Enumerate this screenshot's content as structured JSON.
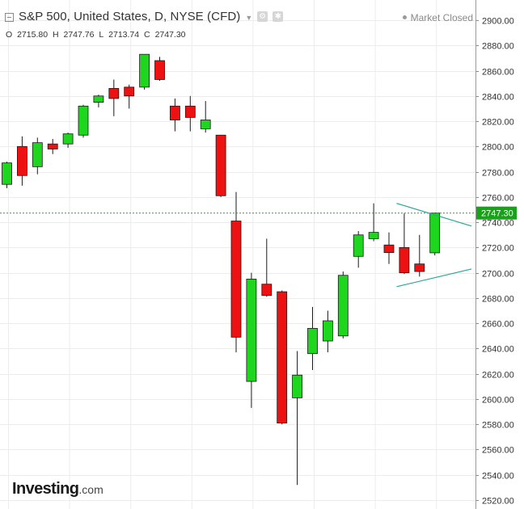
{
  "header": {
    "title": "S&P 500, United States, D, NYSE (CFD)",
    "market_status": "Market Closed",
    "ohlc": {
      "o_label": "O",
      "o": "2715.80",
      "h_label": "H",
      "h": "2747.76",
      "l_label": "L",
      "l": "2713.74",
      "c_label": "C",
      "c": "2747.30"
    }
  },
  "branding": {
    "name": "Investing",
    "suffix": ".com"
  },
  "colors": {
    "up": "#1ed61e",
    "down": "#ee1111",
    "trendline": "#26a69a",
    "price_line": "#2ca02c",
    "grid": "#ececec"
  },
  "chart_data": {
    "type": "candlestick",
    "ylim": [
      2515,
      2915
    ],
    "y_ticks": [
      "2900.00",
      "2880.00",
      "2860.00",
      "2840.00",
      "2820.00",
      "2800.00",
      "2780.00",
      "2760.00",
      "2740.00",
      "2720.00",
      "2700.00",
      "2680.00",
      "2660.00",
      "2640.00",
      "2620.00",
      "2600.00",
      "2580.00",
      "2560.00",
      "2540.00",
      "2520.00"
    ],
    "last_price": 2747.3,
    "last_price_label": "2747.30",
    "candles": [
      {
        "o": 2770,
        "h": 2788,
        "l": 2767,
        "c": 2787
      },
      {
        "o": 2800,
        "h": 2808,
        "l": 2769,
        "c": 2777
      },
      {
        "o": 2784,
        "h": 2807,
        "l": 2778,
        "c": 2803
      },
      {
        "o": 2802,
        "h": 2806,
        "l": 2794,
        "c": 2798
      },
      {
        "o": 2802,
        "h": 2811,
        "l": 2799,
        "c": 2810
      },
      {
        "o": 2809,
        "h": 2833,
        "l": 2807,
        "c": 2832
      },
      {
        "o": 2835,
        "h": 2841,
        "l": 2831,
        "c": 2840
      },
      {
        "o": 2846,
        "h": 2853,
        "l": 2824,
        "c": 2838
      },
      {
        "o": 2847,
        "h": 2849,
        "l": 2830,
        "c": 2840
      },
      {
        "o": 2847,
        "h": 2873,
        "l": 2845,
        "c": 2873
      },
      {
        "o": 2868,
        "h": 2871,
        "l": 2852,
        "c": 2853
      },
      {
        "o": 2832,
        "h": 2838,
        "l": 2812,
        "c": 2821
      },
      {
        "o": 2832,
        "h": 2840,
        "l": 2812,
        "c": 2823
      },
      {
        "o": 2814,
        "h": 2836,
        "l": 2811,
        "c": 2821
      },
      {
        "o": 2809,
        "h": 2809,
        "l": 2760,
        "c": 2761
      },
      {
        "o": 2741,
        "h": 2764,
        "l": 2637,
        "c": 2649
      },
      {
        "o": 2614,
        "h": 2700,
        "l": 2593,
        "c": 2695
      },
      {
        "o": 2691,
        "h": 2727,
        "l": 2681,
        "c": 2682
      },
      {
        "o": 2685,
        "h": 2686,
        "l": 2580,
        "c": 2581
      },
      {
        "o": 2601,
        "h": 2638,
        "l": 2532,
        "c": 2619
      },
      {
        "o": 2636,
        "h": 2673,
        "l": 2623,
        "c": 2656
      },
      {
        "o": 2646,
        "h": 2670,
        "l": 2637,
        "c": 2662
      },
      {
        "o": 2650,
        "h": 2701,
        "l": 2648,
        "c": 2698
      },
      {
        "o": 2713,
        "h": 2733,
        "l": 2704,
        "c": 2730
      },
      {
        "o": 2727,
        "h": 2755,
        "l": 2725,
        "c": 2732
      },
      {
        "o": 2722,
        "h": 2732,
        "l": 2707,
        "c": 2716
      },
      {
        "o": 2720,
        "h": 2747,
        "l": 2699,
        "c": 2700
      },
      {
        "o": 2707,
        "h": 2730,
        "l": 2697,
        "c": 2701
      },
      {
        "o": 2715.8,
        "h": 2747.76,
        "l": 2713.74,
        "c": 2747.3
      }
    ],
    "trendlines": [
      {
        "from": {
          "i": 25.5,
          "y": 2755
        },
        "to": {
          "i": 30.4,
          "y": 2737
        }
      },
      {
        "from": {
          "i": 25.5,
          "y": 2689
        },
        "to": {
          "i": 30.4,
          "y": 2703
        }
      }
    ]
  }
}
